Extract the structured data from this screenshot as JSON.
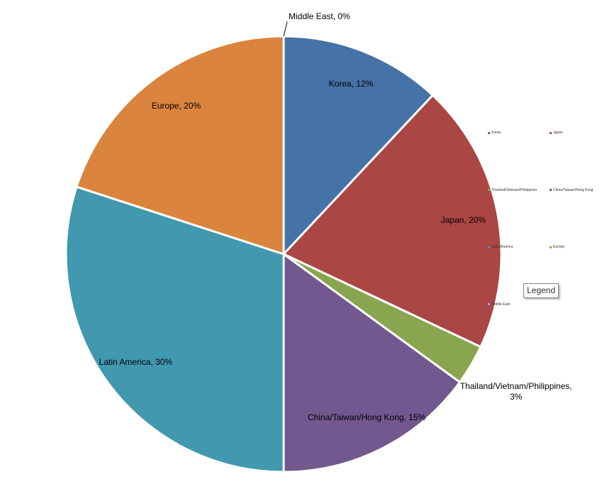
{
  "chart_data": {
    "type": "pie",
    "categories": [
      "Korea",
      "Japan",
      "Thailand/Vietnam/Philippines",
      "China/Taiwan/Hong Kong",
      "Latin America",
      "Europe",
      "Middle East"
    ],
    "values": [
      12,
      20,
      3,
      15,
      30,
      20,
      0
    ],
    "value_labels": [
      "Korea, 12%",
      "Japan, 20%",
      "Thailand/Vietnam/Philippines, 3%",
      "China/Taiwan/Hong Kong, 15%",
      "Latin America, 30%",
      "Europe, 20%",
      "Middle East, 0%"
    ],
    "colors": [
      "#4572a7",
      "#aa4643",
      "#89a54e",
      "#71588f",
      "#4198af",
      "#db843d",
      "#93a9cf"
    ],
    "legend_tooltip": "Legend"
  }
}
